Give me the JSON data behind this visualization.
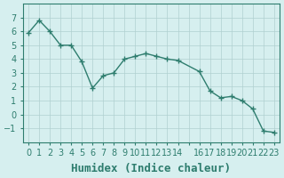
{
  "x": [
    0,
    1,
    2,
    3,
    4,
    5,
    6,
    7,
    8,
    9,
    10,
    11,
    12,
    13,
    14,
    16,
    17,
    18,
    19,
    20,
    21,
    22,
    23
  ],
  "y": [
    5.9,
    6.8,
    6.0,
    5.0,
    5.0,
    3.8,
    1.9,
    2.8,
    3.0,
    4.0,
    4.2,
    4.4,
    4.2,
    4.0,
    3.9,
    3.1,
    1.7,
    1.2,
    1.3,
    1.0,
    0.4,
    -1.2,
    -1.3
  ],
  "xlabel": "Humidex (Indice chaleur)",
  "ylim": [
    -2,
    8
  ],
  "xlim": [
    -0.5,
    23.5
  ],
  "yticks": [
    -1,
    0,
    1,
    2,
    3,
    4,
    5,
    6,
    7
  ],
  "xticks": [
    0,
    1,
    2,
    3,
    4,
    5,
    6,
    7,
    8,
    9,
    10,
    11,
    12,
    13,
    14,
    15,
    16,
    17,
    18,
    19,
    20,
    21,
    22,
    23
  ],
  "xtick_labels": [
    "0",
    "1",
    "2",
    "3",
    "4",
    "5",
    "6",
    "7",
    "8",
    "9",
    "10",
    "11",
    "12",
    "13",
    "14",
    "",
    "16",
    "17",
    "18",
    "19",
    "20",
    "21",
    "22",
    "23"
  ],
  "line_color": "#2e7d6e",
  "marker_color": "#2e7d6e",
  "bg_color": "#d6efef",
  "grid_color": "#b0d0d0",
  "axes_color": "#2e7d6e",
  "tick_label_color": "#2e7d6e",
  "xlabel_color": "#2e7d6e",
  "xlabel_fontsize": 9,
  "tick_fontsize": 7
}
